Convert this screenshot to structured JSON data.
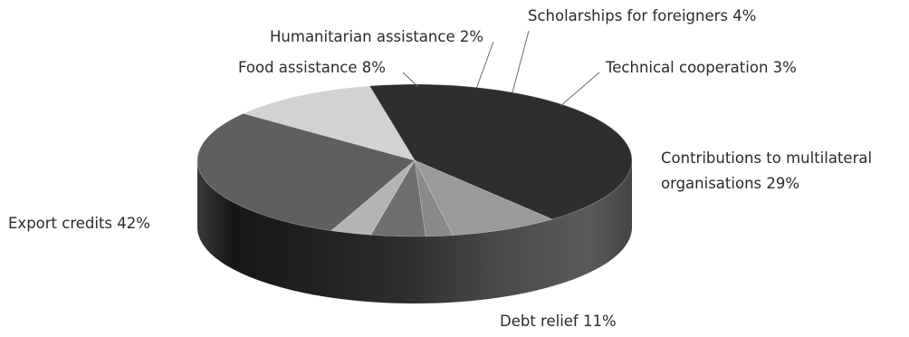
{
  "chart_data": {
    "type": "pie",
    "style": "3d",
    "title": "",
    "legend": "none",
    "unit": "%",
    "slices": [
      {
        "label": "Export credits",
        "value": 42,
        "color": "#2e2e2e"
      },
      {
        "label": "Food assistance",
        "value": 8,
        "color": "#9a9a9a"
      },
      {
        "label": "Humanitarian assistance",
        "value": 2,
        "color": "#8a8a8a"
      },
      {
        "label": "Scholarships for foreigners",
        "value": 4,
        "color": "#6e6e6e"
      },
      {
        "label": "Technical cooperation",
        "value": 3,
        "color": "#b4b4b4"
      },
      {
        "label": "Contributions to multilateral organisations",
        "value": 29,
        "color": "#5f5f5f"
      },
      {
        "label": "Debt relief",
        "value": 11,
        "color": "#d2d2d2"
      }
    ]
  }
}
